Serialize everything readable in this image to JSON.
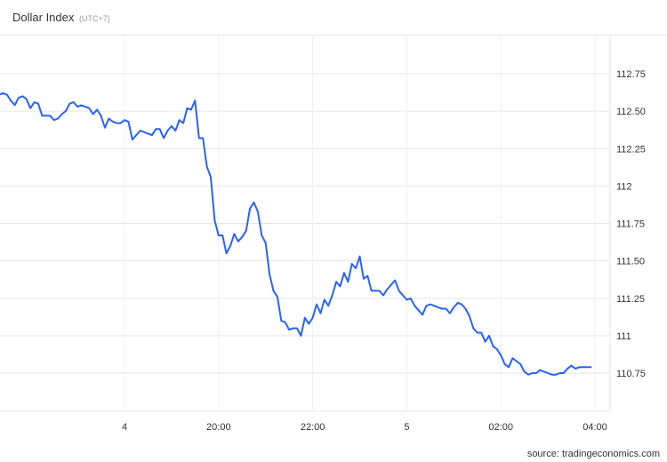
{
  "header": {
    "title": "Dollar Index",
    "timezone": "(UTC+7)"
  },
  "source": "source: tradingeconomics.com",
  "chart_data": {
    "type": "line",
    "title": "Dollar Index",
    "color": "#2962ff",
    "grid": true,
    "y_axis_position": "right",
    "ylim": [
      110.5,
      113.0
    ],
    "y_ticks": [
      {
        "value": 112.75,
        "label": "112.75"
      },
      {
        "value": 112.5,
        "label": "112.50"
      },
      {
        "value": 112.25,
        "label": "112.25"
      },
      {
        "value": 112.0,
        "label": "112"
      },
      {
        "value": 111.75,
        "label": "111.75"
      },
      {
        "value": 111.5,
        "label": "111.50"
      },
      {
        "value": 111.25,
        "label": "111.25"
      },
      {
        "value": 111.0,
        "label": "111"
      },
      {
        "value": 110.75,
        "label": "110.75"
      }
    ],
    "x_ticks": [
      {
        "time": "18:00",
        "label": "4"
      },
      {
        "time": "20:00",
        "label": "20:00"
      },
      {
        "time": "22:00",
        "label": "22:00"
      },
      {
        "time": "00:00",
        "label": "5"
      },
      {
        "time": "02:00",
        "label": "02:00"
      },
      {
        "time": "04:00",
        "label": "04:00"
      }
    ],
    "x": [
      "15:20",
      "15:25",
      "15:30",
      "15:35",
      "15:40",
      "15:45",
      "15:50",
      "15:55",
      "16:00",
      "16:05",
      "16:10",
      "16:15",
      "16:20",
      "16:25",
      "16:30",
      "16:35",
      "16:40",
      "16:45",
      "16:50",
      "16:55",
      "17:00",
      "17:05",
      "17:10",
      "17:15",
      "17:20",
      "17:25",
      "17:30",
      "17:35",
      "17:40",
      "17:45",
      "17:50",
      "17:55",
      "18:00",
      "18:05",
      "18:10",
      "18:15",
      "18:20",
      "18:25",
      "18:30",
      "18:35",
      "18:40",
      "18:45",
      "18:50",
      "18:55",
      "19:00",
      "19:05",
      "19:10",
      "19:15",
      "19:20",
      "19:25",
      "19:30",
      "19:35",
      "19:40",
      "19:45",
      "19:50",
      "19:55",
      "20:00",
      "20:05",
      "20:10",
      "20:15",
      "20:20",
      "20:25",
      "20:30",
      "20:35",
      "20:40",
      "20:45",
      "20:50",
      "20:55",
      "21:00",
      "21:05",
      "21:10",
      "21:15",
      "21:20",
      "21:25",
      "21:30",
      "21:35",
      "21:40",
      "21:45",
      "21:50",
      "21:55",
      "22:00",
      "22:05",
      "22:10",
      "22:15",
      "22:20",
      "22:25",
      "22:30",
      "22:35",
      "22:40",
      "22:45",
      "22:50",
      "22:55",
      "23:00",
      "23:05",
      "23:10",
      "23:15",
      "23:20",
      "23:25",
      "23:30",
      "23:35",
      "23:40",
      "23:45",
      "23:50",
      "23:55",
      "00:00",
      "00:05",
      "00:10",
      "00:15",
      "00:20",
      "00:25",
      "00:30",
      "00:35",
      "00:40",
      "00:45",
      "00:50",
      "00:55",
      "01:00",
      "01:05",
      "01:10",
      "01:15",
      "01:20",
      "01:25",
      "01:30",
      "01:35",
      "01:40",
      "01:45",
      "01:50",
      "01:55",
      "02:00",
      "02:05",
      "02:10",
      "02:15",
      "02:20",
      "02:25",
      "02:30",
      "02:35",
      "02:40",
      "02:45",
      "02:50",
      "02:55",
      "03:00",
      "03:05",
      "03:10",
      "03:15",
      "03:20",
      "03:25",
      "03:30",
      "03:35",
      "03:40",
      "03:45",
      "03:50",
      "03:55"
    ],
    "y": [
      112.61,
      112.62,
      112.61,
      112.57,
      112.54,
      112.59,
      112.6,
      112.58,
      112.52,
      112.56,
      112.55,
      112.47,
      112.47,
      112.47,
      112.44,
      112.45,
      112.48,
      112.5,
      112.55,
      112.56,
      112.53,
      112.54,
      112.53,
      112.52,
      112.48,
      112.51,
      112.47,
      112.39,
      112.45,
      112.43,
      112.42,
      112.42,
      112.44,
      112.43,
      112.31,
      112.34,
      112.37,
      112.36,
      112.35,
      112.34,
      112.38,
      112.38,
      112.32,
      112.37,
      112.4,
      112.37,
      112.44,
      112.42,
      112.52,
      112.51,
      112.57,
      112.32,
      112.32,
      112.13,
      112.06,
      111.77,
      111.67,
      111.67,
      111.55,
      111.6,
      111.68,
      111.63,
      111.66,
      111.7,
      111.85,
      111.89,
      111.83,
      111.67,
      111.62,
      111.41,
      111.3,
      111.26,
      111.1,
      111.09,
      111.04,
      111.05,
      111.05,
      111.0,
      111.12,
      111.08,
      111.12,
      111.21,
      111.15,
      111.24,
      111.2,
      111.27,
      111.36,
      111.33,
      111.42,
      111.36,
      111.48,
      111.45,
      111.53,
      111.38,
      111.4,
      111.3,
      111.3,
      111.3,
      111.27,
      111.31,
      111.34,
      111.37,
      111.3,
      111.27,
      111.24,
      111.25,
      111.2,
      111.17,
      111.14,
      111.2,
      111.21,
      111.2,
      111.19,
      111.18,
      111.18,
      111.15,
      111.19,
      111.22,
      111.21,
      111.18,
      111.13,
      111.05,
      111.02,
      111.02,
      110.96,
      111.0,
      110.93,
      110.91,
      110.87,
      110.81,
      110.79,
      110.85,
      110.83,
      110.81,
      110.76,
      110.74,
      110.75,
      110.75,
      110.77,
      110.76,
      110.75,
      110.74,
      110.74,
      110.75,
      110.75,
      110.78,
      110.8,
      110.78,
      110.79,
      110.79,
      110.79,
      110.79
    ]
  }
}
